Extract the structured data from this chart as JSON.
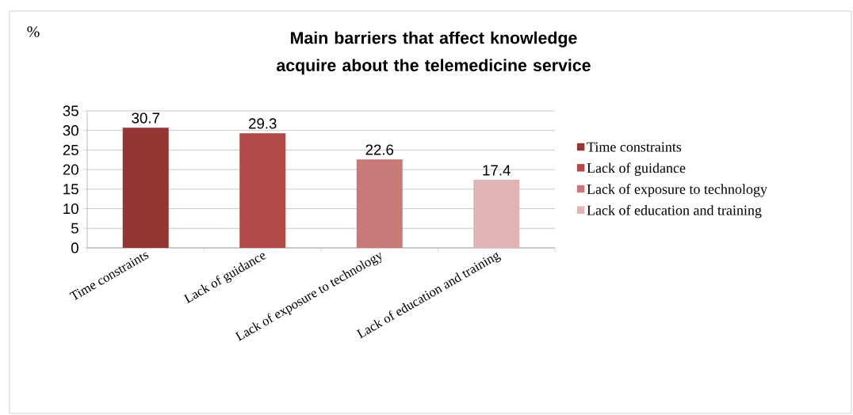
{
  "chart_data": {
    "type": "bar",
    "title": "Main barriers that affect knowledge acquire about the telemedicine service",
    "annotations": [
      "%"
    ],
    "categories": [
      "Time constraints",
      "Lack of guidance",
      "Lack of exposure to technology",
      "Lack of education and training"
    ],
    "series": [
      {
        "name": "Time constraints",
        "color": "#943634",
        "values": [
          30.7,
          null,
          null,
          null
        ]
      },
      {
        "name": "Lack of guidance",
        "color": "#b24a47",
        "values": [
          null,
          29.3,
          null,
          null
        ]
      },
      {
        "name": "Lack of exposure to technology",
        "color": "#c87a79",
        "values": [
          null,
          null,
          22.6,
          null
        ]
      },
      {
        "name": "Lack of education and training",
        "color": "#e0b3b4",
        "values": [
          null,
          null,
          null,
          17.4
        ]
      }
    ],
    "ylim": [
      0,
      35
    ],
    "yticks": [
      0,
      5,
      10,
      15,
      20,
      25,
      30,
      35
    ],
    "grid": "y",
    "legend": "right",
    "data_labels": true
  }
}
